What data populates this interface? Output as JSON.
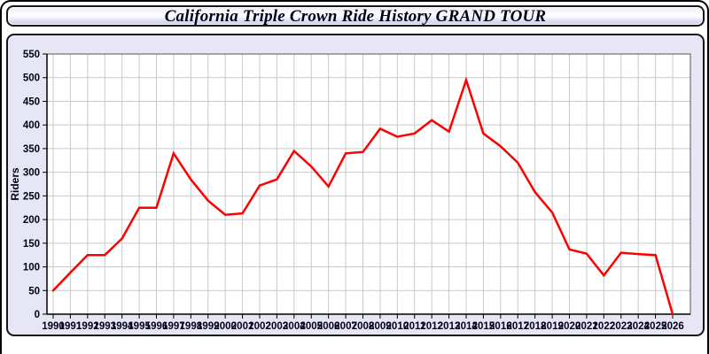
{
  "window": {
    "title": "California Triple Crown Ride History GRAND TOUR"
  },
  "colors": {
    "line": "#ff0000",
    "panel_bg": "#e6e6f5",
    "plot_bg": "#ffffff",
    "grid": "#c9c9c9",
    "frame": "#555555",
    "axis": "#000000",
    "axis_text": "#00001a",
    "title_text": "#000018"
  },
  "chart_data": {
    "type": "line",
    "title": "California Triple Crown Ride History GRAND TOUR",
    "xlabel": "",
    "ylabel": "Riders",
    "x": [
      1990,
      1991,
      1992,
      1993,
      1994,
      1995,
      1996,
      1997,
      1998,
      1999,
      2000,
      2001,
      2002,
      2003,
      2004,
      2005,
      2006,
      2007,
      2008,
      2009,
      2010,
      2011,
      2012,
      2013,
      2014,
      2015,
      2016,
      2017,
      2018,
      2019,
      2020,
      2021,
      2022,
      2023,
      2024,
      2025,
      2026
    ],
    "series": [
      {
        "name": "Riders",
        "color": "#ff0000",
        "values": [
          50,
          88,
          125,
          125,
          160,
          225,
          225,
          340,
          285,
          240,
          210,
          213,
          272,
          285,
          345,
          312,
          270,
          340,
          343,
          392,
          375,
          382,
          410,
          386,
          495,
          382,
          355,
          320,
          258,
          215,
          137,
          128,
          82,
          130,
          127,
          125,
          0
        ]
      }
    ],
    "ylim": [
      0,
      550
    ],
    "ytick_step": 50,
    "grid": true,
    "legend": "none"
  }
}
